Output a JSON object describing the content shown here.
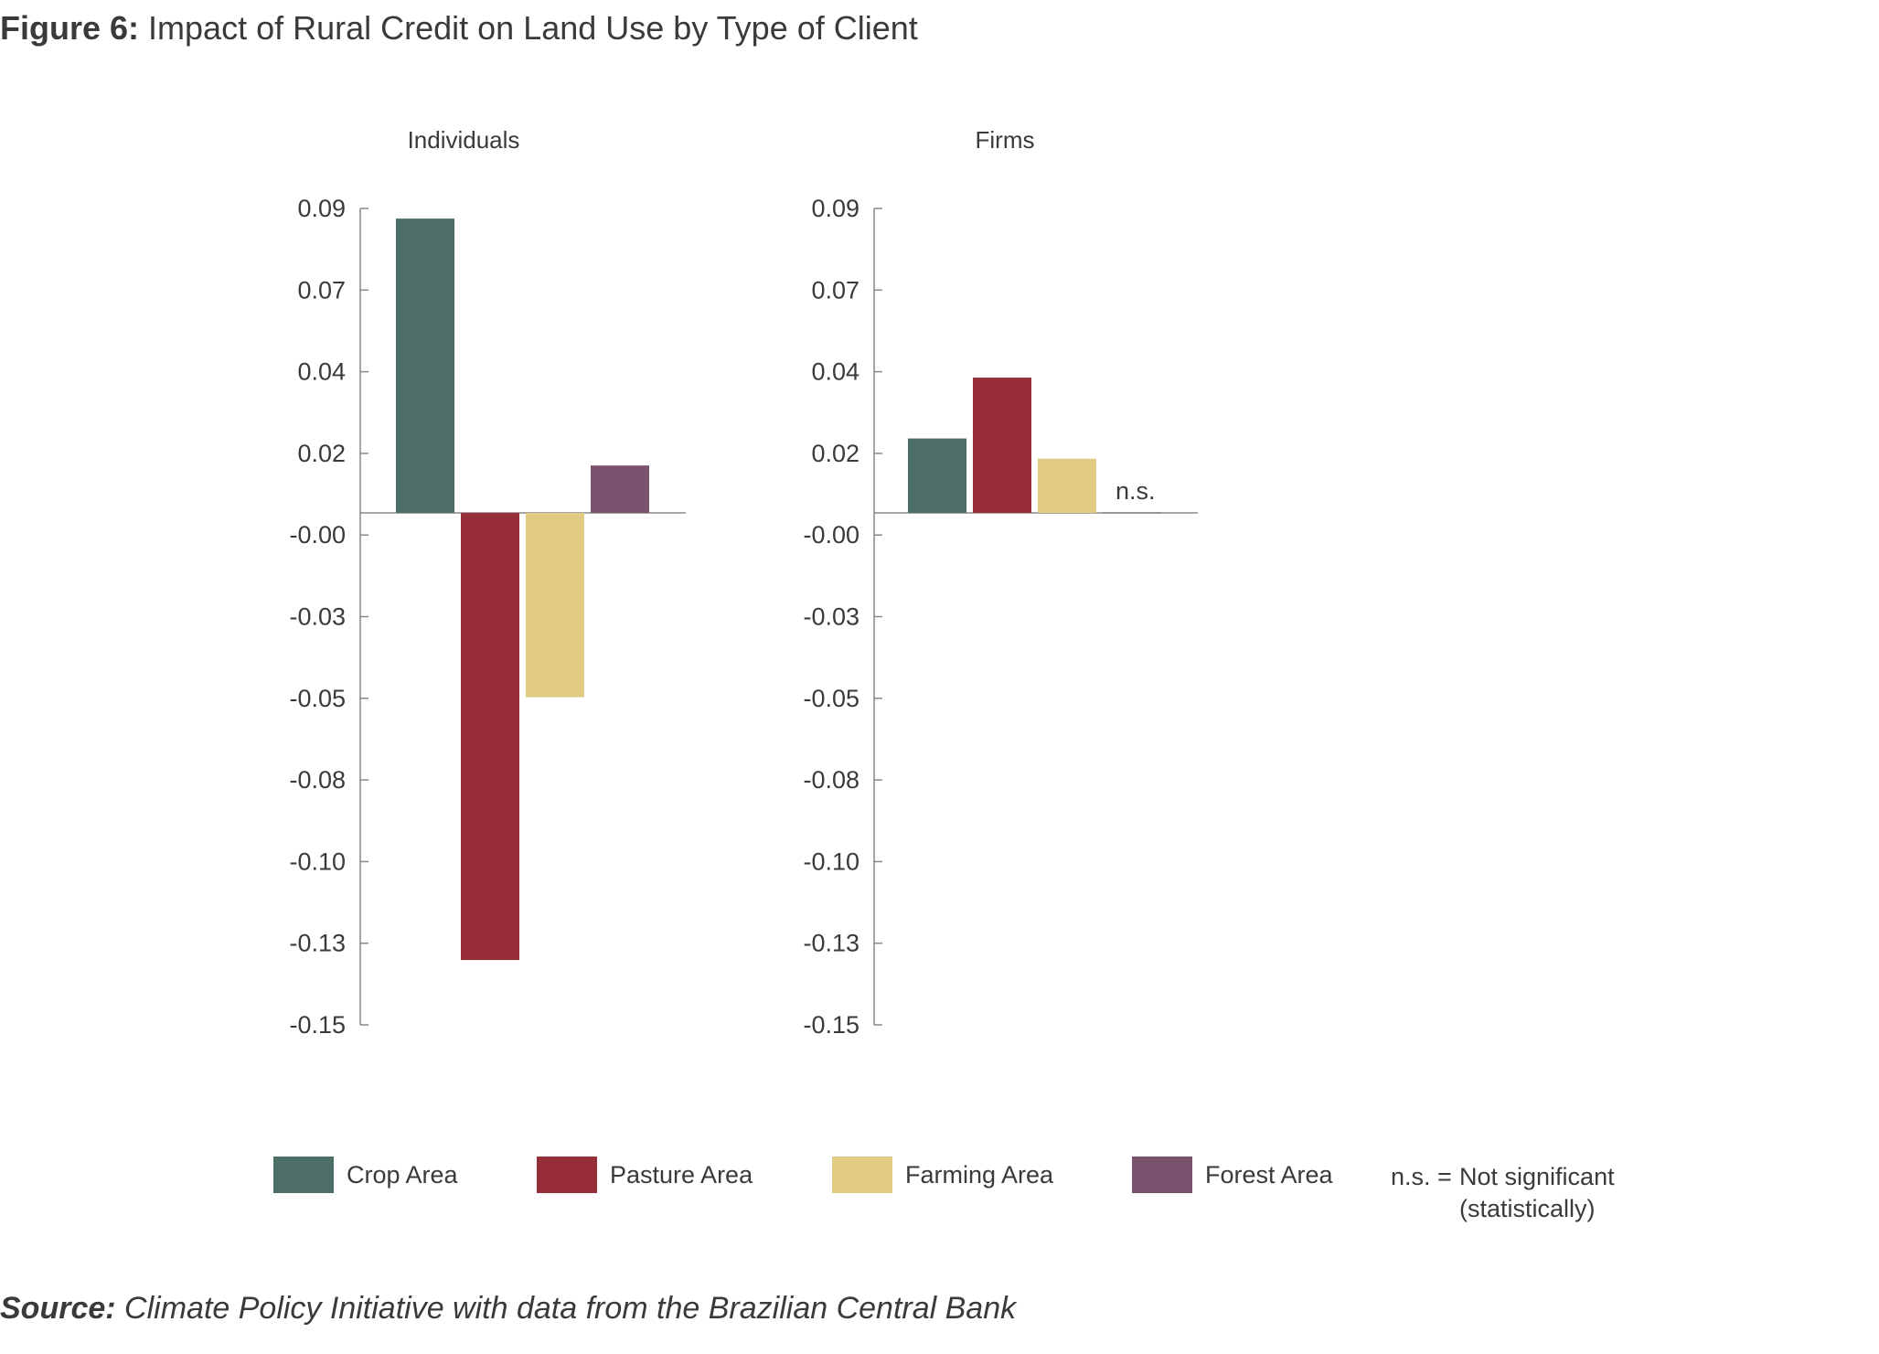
{
  "figure": {
    "label": "Figure 6:",
    "title": "Impact of Rural Credit on Land Use by Type of Client"
  },
  "source": {
    "label": "Source:",
    "text": "Climate Policy Initiative with data from the Brazilian Central Bank"
  },
  "colors": {
    "crop": "#4d6e66",
    "pasture": "#962d38",
    "farming": "#e0ca84",
    "forest": "#7a526e",
    "axis": "#888888",
    "text": "#3a3a3a"
  },
  "chart_data": [
    {
      "type": "bar",
      "title": "Individuals",
      "y_tick_labels": [
        "0.09",
        "0.07",
        "0.04",
        "0.02",
        "-0.00",
        "-0.03",
        "-0.05",
        "-0.08",
        "-0.10",
        "-0.13",
        "-0.15"
      ],
      "ylim": [
        -0.15,
        0.09
      ],
      "series": [
        {
          "name": "Crop Area",
          "value": 0.087
        },
        {
          "name": "Pasture Area",
          "value": -0.131
        },
        {
          "name": "Farming Area",
          "value": -0.054
        },
        {
          "name": "Forest Area",
          "value": 0.014
        }
      ],
      "annotations": []
    },
    {
      "type": "bar",
      "title": "Firms",
      "y_tick_labels": [
        "0.09",
        "0.07",
        "0.04",
        "0.02",
        "-0.00",
        "-0.03",
        "-0.05",
        "-0.08",
        "-0.10",
        "-0.13",
        "-0.15"
      ],
      "ylim": [
        -0.15,
        0.09
      ],
      "series": [
        {
          "name": "Crop Area",
          "value": 0.022
        },
        {
          "name": "Pasture Area",
          "value": 0.04
        },
        {
          "name": "Farming Area",
          "value": 0.016
        },
        {
          "name": "Forest Area",
          "value": 0.0
        }
      ],
      "annotations": [
        "n.s."
      ]
    }
  ],
  "legend": {
    "items": [
      {
        "name": "Crop Area",
        "color": "#4d6e66"
      },
      {
        "name": "Pasture Area",
        "color": "#962d38"
      },
      {
        "name": "Farming Area",
        "color": "#e0ca84"
      },
      {
        "name": "Forest Area",
        "color": "#7a526e"
      }
    ],
    "note_key": "n.s. =",
    "note_line1": "Not significant",
    "note_line2": "(statistically)"
  }
}
